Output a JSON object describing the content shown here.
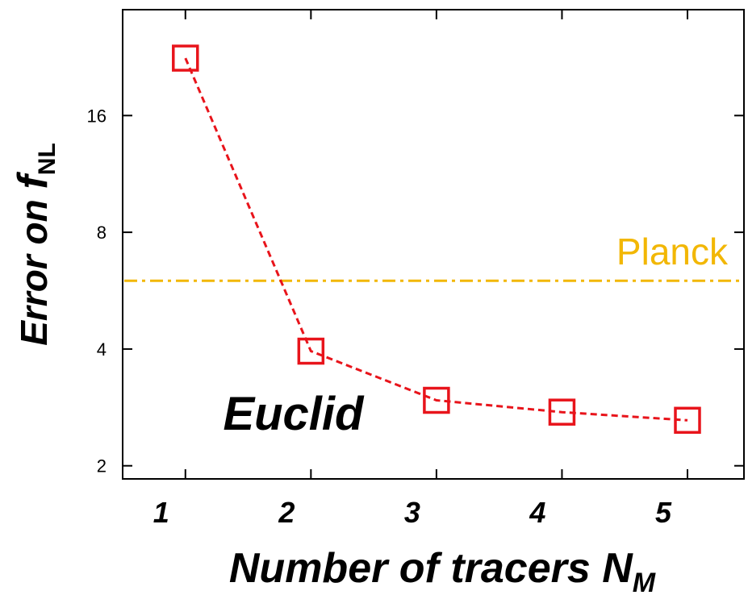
{
  "chart_data": {
    "type": "line",
    "x": [
      1,
      2,
      3,
      4,
      5
    ],
    "series": [
      {
        "values": [
          22.5,
          3.95,
          2.95,
          2.75,
          2.62
        ],
        "color": "#e8141b",
        "marker": "square",
        "line_style": "dashed"
      }
    ],
    "xticks": [
      "1",
      "2",
      "3",
      "4",
      "5"
    ],
    "yticks": [
      "2",
      "4",
      "8",
      "16"
    ],
    "ytick_values": [
      2,
      4,
      8,
      16
    ],
    "yscale": "log2",
    "xlim": [
      0.5,
      5.45
    ],
    "ylim": [
      1.85,
      30
    ],
    "xlabel": {
      "main": "Number of tracers  N",
      "sub": "M"
    },
    "ylabel": {
      "main": "Error on ",
      "var": "f",
      "sub": "NL"
    },
    "reference_line": {
      "label": "Planck",
      "value": 6.0,
      "color": "#f2b705",
      "style": "dash-dot"
    },
    "annotations": [
      {
        "text": "Euclid",
        "x": 1.3,
        "y": 2.7
      }
    ]
  }
}
